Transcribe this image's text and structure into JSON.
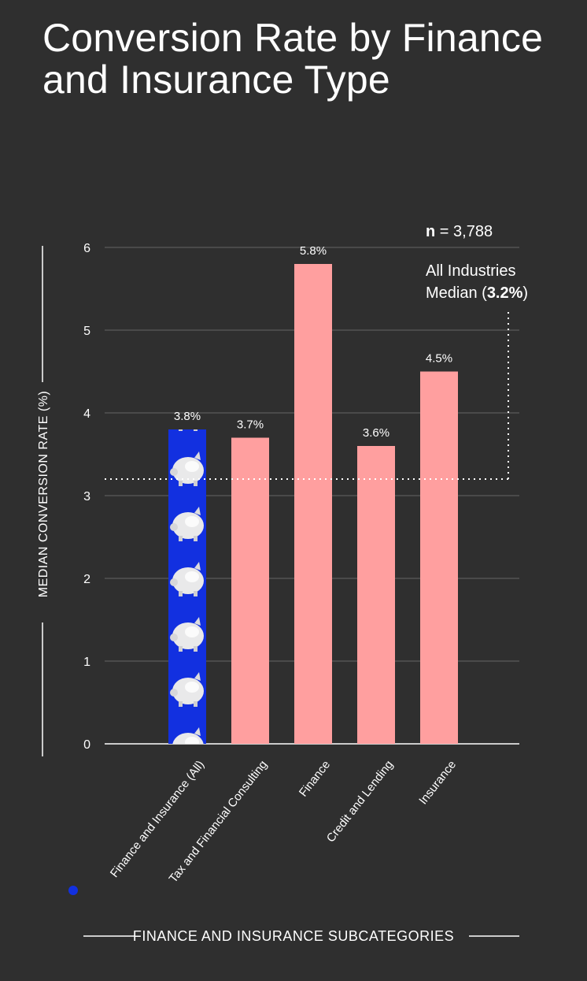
{
  "title": "Conversion Rate by Finance and Insurance Type",
  "notes": {
    "n_label": "n",
    "n_value": "= 3,788",
    "median_line1": "All Industries",
    "median_line2_prefix": "Median (",
    "median_value": "3.2%",
    "median_line2_suffix": ")"
  },
  "colors": {
    "background": "#2f2f2f",
    "highlight_bar": "#1230e0",
    "bar": "#ff9f9f",
    "grid": "#5a5a5a",
    "text": "#ffffff"
  },
  "chart_data": {
    "type": "bar",
    "categories": [
      "Finance and Insurance (All)",
      "Tax and Financial Consulting",
      "Finance",
      "Credit and Lending",
      "Insurance"
    ],
    "values": [
      3.8,
      3.7,
      5.8,
      3.6,
      4.5
    ],
    "value_labels": [
      "3.8%",
      "3.7%",
      "5.8%",
      "3.6%",
      "4.5%"
    ],
    "highlight_index": 0,
    "highlight_icon": "piggy-bank-icon",
    "ylabel": "MEDIAN CONVERSION RATE (%)",
    "xlabel": "FINANCE AND INSURANCE SUBCATEGORIES",
    "ylim": [
      0,
      6
    ],
    "yticks": [
      0,
      1,
      2,
      3,
      4,
      5,
      6
    ],
    "reference_line": {
      "value": 3.2,
      "style": "dotted"
    },
    "grid": true
  }
}
